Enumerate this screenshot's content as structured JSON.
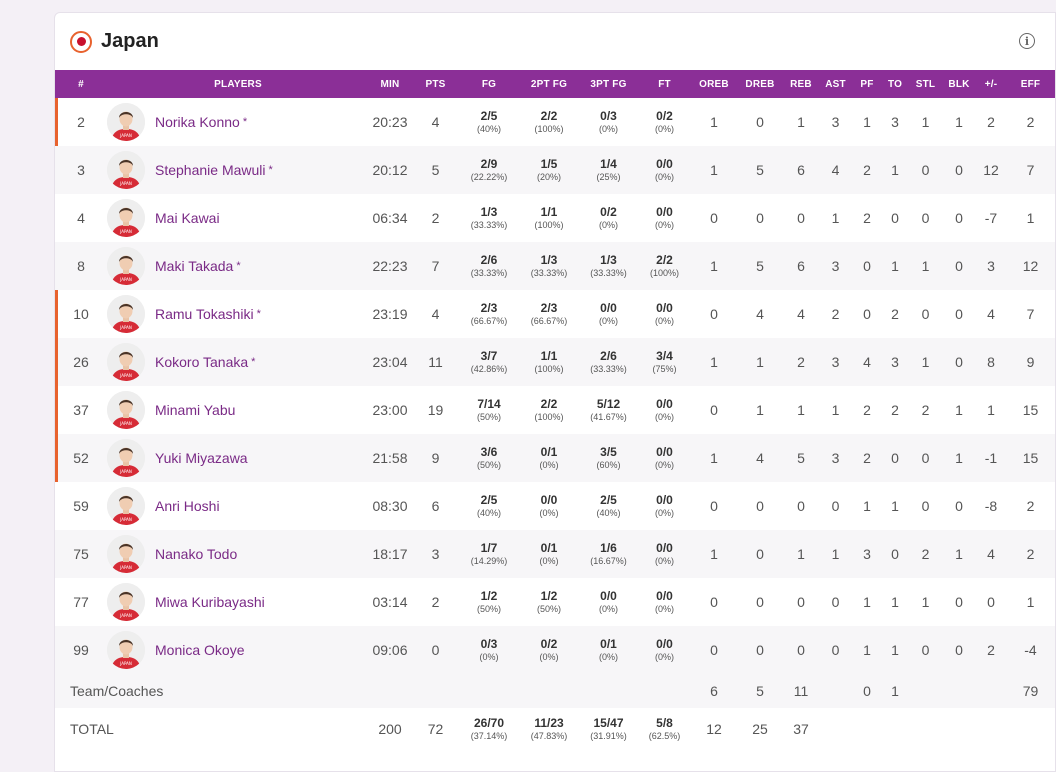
{
  "team": {
    "name": "Japan"
  },
  "columns": [
    "#",
    "PLAYERS",
    "MIN",
    "PTS",
    "FG",
    "2PT FG",
    "3PT FG",
    "FT",
    "OREB",
    "DREB",
    "REB",
    "AST",
    "PF",
    "TO",
    "STL",
    "BLK",
    "+/-",
    "EFF"
  ],
  "players": [
    {
      "num": "2",
      "name": "Norika Konno",
      "star": "*",
      "starter": true,
      "min": "20:23",
      "pts": "4",
      "fg": "2/5",
      "fg_pct": "(40%)",
      "fg2": "2/2",
      "fg2_pct": "(100%)",
      "fg3": "0/3",
      "fg3_pct": "(0%)",
      "ft": "0/2",
      "ft_pct": "(0%)",
      "oreb": "1",
      "dreb": "0",
      "reb": "1",
      "ast": "3",
      "pf": "1",
      "to": "3",
      "stl": "1",
      "blk": "1",
      "pm": "2",
      "eff": "2"
    },
    {
      "num": "3",
      "name": "Stephanie Mawuli",
      "star": "*",
      "starter": false,
      "min": "20:12",
      "pts": "5",
      "fg": "2/9",
      "fg_pct": "(22.22%)",
      "fg2": "1/5",
      "fg2_pct": "(20%)",
      "fg3": "1/4",
      "fg3_pct": "(25%)",
      "ft": "0/0",
      "ft_pct": "(0%)",
      "oreb": "1",
      "dreb": "5",
      "reb": "6",
      "ast": "4",
      "pf": "2",
      "to": "1",
      "stl": "0",
      "blk": "0",
      "pm": "12",
      "eff": "7"
    },
    {
      "num": "4",
      "name": "Mai Kawai",
      "star": "",
      "starter": false,
      "min": "06:34",
      "pts": "2",
      "fg": "1/3",
      "fg_pct": "(33.33%)",
      "fg2": "1/1",
      "fg2_pct": "(100%)",
      "fg3": "0/2",
      "fg3_pct": "(0%)",
      "ft": "0/0",
      "ft_pct": "(0%)",
      "oreb": "0",
      "dreb": "0",
      "reb": "0",
      "ast": "1",
      "pf": "2",
      "to": "0",
      "stl": "0",
      "blk": "0",
      "pm": "-7",
      "eff": "1"
    },
    {
      "num": "8",
      "name": "Maki Takada",
      "star": "*",
      "starter": false,
      "min": "22:23",
      "pts": "7",
      "fg": "2/6",
      "fg_pct": "(33.33%)",
      "fg2": "1/3",
      "fg2_pct": "(33.33%)",
      "fg3": "1/3",
      "fg3_pct": "(33.33%)",
      "ft": "2/2",
      "ft_pct": "(100%)",
      "oreb": "1",
      "dreb": "5",
      "reb": "6",
      "ast": "3",
      "pf": "0",
      "to": "1",
      "stl": "1",
      "blk": "0",
      "pm": "3",
      "eff": "12"
    },
    {
      "num": "10",
      "name": "Ramu Tokashiki",
      "star": "*",
      "starter": true,
      "min": "23:19",
      "pts": "4",
      "fg": "2/3",
      "fg_pct": "(66.67%)",
      "fg2": "2/3",
      "fg2_pct": "(66.67%)",
      "fg3": "0/0",
      "fg3_pct": "(0%)",
      "ft": "0/0",
      "ft_pct": "(0%)",
      "oreb": "0",
      "dreb": "4",
      "reb": "4",
      "ast": "2",
      "pf": "0",
      "to": "2",
      "stl": "0",
      "blk": "0",
      "pm": "4",
      "eff": "7"
    },
    {
      "num": "26",
      "name": "Kokoro Tanaka",
      "star": "*",
      "starter": true,
      "min": "23:04",
      "pts": "11",
      "fg": "3/7",
      "fg_pct": "(42.86%)",
      "fg2": "1/1",
      "fg2_pct": "(100%)",
      "fg3": "2/6",
      "fg3_pct": "(33.33%)",
      "ft": "3/4",
      "ft_pct": "(75%)",
      "oreb": "1",
      "dreb": "1",
      "reb": "2",
      "ast": "3",
      "pf": "4",
      "to": "3",
      "stl": "1",
      "blk": "0",
      "pm": "8",
      "eff": "9"
    },
    {
      "num": "37",
      "name": "Minami Yabu",
      "star": "",
      "starter": true,
      "min": "23:00",
      "pts": "19",
      "fg": "7/14",
      "fg_pct": "(50%)",
      "fg2": "2/2",
      "fg2_pct": "(100%)",
      "fg3": "5/12",
      "fg3_pct": "(41.67%)",
      "ft": "0/0",
      "ft_pct": "(0%)",
      "oreb": "0",
      "dreb": "1",
      "reb": "1",
      "ast": "1",
      "pf": "2",
      "to": "2",
      "stl": "2",
      "blk": "1",
      "pm": "1",
      "eff": "15"
    },
    {
      "num": "52",
      "name": "Yuki Miyazawa",
      "star": "",
      "starter": true,
      "min": "21:58",
      "pts": "9",
      "fg": "3/6",
      "fg_pct": "(50%)",
      "fg2": "0/1",
      "fg2_pct": "(0%)",
      "fg3": "3/5",
      "fg3_pct": "(60%)",
      "ft": "0/0",
      "ft_pct": "(0%)",
      "oreb": "1",
      "dreb": "4",
      "reb": "5",
      "ast": "3",
      "pf": "2",
      "to": "0",
      "stl": "0",
      "blk": "1",
      "pm": "-1",
      "eff": "15"
    },
    {
      "num": "59",
      "name": "Anri Hoshi",
      "star": "",
      "starter": false,
      "min": "08:30",
      "pts": "6",
      "fg": "2/5",
      "fg_pct": "(40%)",
      "fg2": "0/0",
      "fg2_pct": "(0%)",
      "fg3": "2/5",
      "fg3_pct": "(40%)",
      "ft": "0/0",
      "ft_pct": "(0%)",
      "oreb": "0",
      "dreb": "0",
      "reb": "0",
      "ast": "0",
      "pf": "1",
      "to": "1",
      "stl": "0",
      "blk": "0",
      "pm": "-8",
      "eff": "2"
    },
    {
      "num": "75",
      "name": "Nanako Todo",
      "star": "",
      "starter": false,
      "min": "18:17",
      "pts": "3",
      "fg": "1/7",
      "fg_pct": "(14.29%)",
      "fg2": "0/1",
      "fg2_pct": "(0%)",
      "fg3": "1/6",
      "fg3_pct": "(16.67%)",
      "ft": "0/0",
      "ft_pct": "(0%)",
      "oreb": "1",
      "dreb": "0",
      "reb": "1",
      "ast": "1",
      "pf": "3",
      "to": "0",
      "stl": "2",
      "blk": "1",
      "pm": "4",
      "eff": "2"
    },
    {
      "num": "77",
      "name": "Miwa Kuribayashi",
      "star": "",
      "starter": false,
      "min": "03:14",
      "pts": "2",
      "fg": "1/2",
      "fg_pct": "(50%)",
      "fg2": "1/2",
      "fg2_pct": "(50%)",
      "fg3": "0/0",
      "fg3_pct": "(0%)",
      "ft": "0/0",
      "ft_pct": "(0%)",
      "oreb": "0",
      "dreb": "0",
      "reb": "0",
      "ast": "0",
      "pf": "1",
      "to": "1",
      "stl": "1",
      "blk": "0",
      "pm": "0",
      "eff": "1"
    },
    {
      "num": "99",
      "name": "Monica Okoye",
      "star": "",
      "starter": false,
      "min": "09:06",
      "pts": "0",
      "fg": "0/3",
      "fg_pct": "(0%)",
      "fg2": "0/2",
      "fg2_pct": "(0%)",
      "fg3": "0/1",
      "fg3_pct": "(0%)",
      "ft": "0/0",
      "ft_pct": "(0%)",
      "oreb": "0",
      "dreb": "0",
      "reb": "0",
      "ast": "0",
      "pf": "1",
      "to": "1",
      "stl": "0",
      "blk": "0",
      "pm": "2",
      "eff": "-4"
    }
  ],
  "team_row": {
    "label": "Team/Coaches",
    "oreb": "6",
    "dreb": "5",
    "reb": "11",
    "pf": "0",
    "to": "1",
    "eff": "79"
  },
  "total_row": {
    "label": "TOTAL",
    "min": "200",
    "pts": "72",
    "fg": "26/70",
    "fg_pct": "(37.14%)",
    "fg2": "11/23",
    "fg2_pct": "(47.83%)",
    "fg3": "15/47",
    "fg3_pct": "(31.91%)",
    "ft": "5/8",
    "ft_pct": "(62.5%)",
    "oreb": "12",
    "dreb": "25",
    "reb": "37"
  },
  "colors": {
    "header_bg": "#8b2f97",
    "starter_marker": "#e8622e",
    "player_link": "#7a2a86",
    "jersey": "#d62b36"
  },
  "icons": {
    "flag": "japan-flag-icon",
    "info": "info-icon",
    "avatar": "player-avatar"
  }
}
